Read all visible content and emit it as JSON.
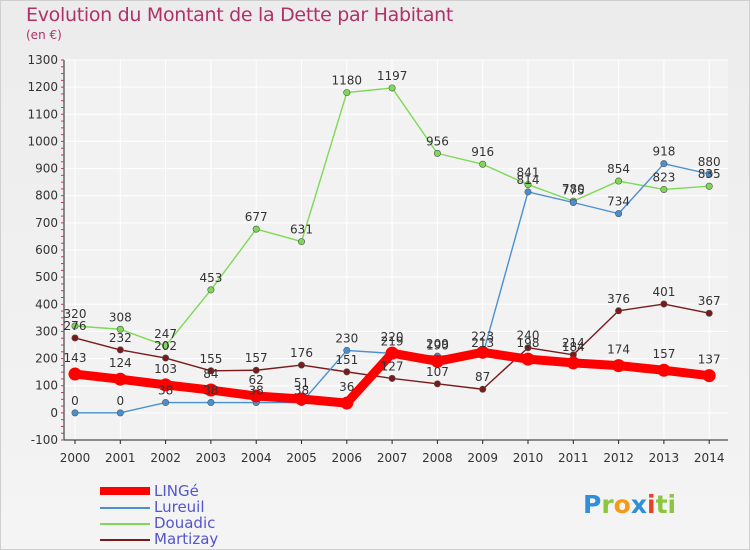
{
  "title": "Evolution du Montant de la Dette par Habitant",
  "subtitle": "(en €)",
  "logo": {
    "text": "Proxiti",
    "letters": [
      "P",
      "r",
      "o",
      "x",
      "i",
      "t",
      "i"
    ]
  },
  "chart_data": {
    "type": "line",
    "x": [
      "2000",
      "2001",
      "2002",
      "2003",
      "2004",
      "2005",
      "2006",
      "2007",
      "2008",
      "2009",
      "2010",
      "2011",
      "2012",
      "2013",
      "2014"
    ],
    "ylim": [
      -100,
      1300
    ],
    "yticks": [
      "-100",
      "0",
      "100",
      "200",
      "300",
      "400",
      "500",
      "600",
      "700",
      "800",
      "900",
      "1000",
      "1100",
      "1200",
      "1300"
    ],
    "grid": true,
    "legend_position": "bottom-left",
    "series": [
      {
        "name": "LINGé",
        "color": "#ff0000",
        "values": [
          143,
          124,
          103,
          84,
          62,
          51,
          36,
          220,
          190,
          223,
          198,
          184,
          174,
          157,
          137
        ],
        "labels": [
          "143",
          "124",
          "103",
          "84",
          "62",
          "51",
          "36",
          "220",
          "190",
          "223",
          "198",
          "184",
          "174",
          "157",
          "137"
        ]
      },
      {
        "name": "Lureuil",
        "color": "#4a90d0",
        "values": [
          0,
          0,
          38,
          38,
          38,
          38,
          230,
          219,
          209,
          213,
          814,
          775,
          734,
          918,
          880
        ],
        "labels": [
          "0",
          "0",
          "38",
          "38",
          "38",
          "38",
          "230",
          "219",
          "209",
          "213",
          "814",
          "775",
          "734",
          "918",
          "880"
        ]
      },
      {
        "name": "Douadic",
        "color": "#7ed957",
        "values": [
          320,
          308,
          247,
          453,
          677,
          631,
          1180,
          1197,
          956,
          916,
          841,
          780,
          854,
          823,
          835
        ],
        "labels": [
          "320",
          "308",
          "247",
          "453",
          "677",
          "631",
          "1180",
          "1197",
          "956",
          "916",
          "841",
          "780",
          "854",
          "823",
          "835"
        ]
      },
      {
        "name": "Martizay",
        "color": "#7a1a1a",
        "values": [
          276,
          232,
          202,
          155,
          157,
          176,
          151,
          127,
          107,
          87,
          240,
          214,
          376,
          401,
          367
        ],
        "labels": [
          "276",
          "232",
          "202",
          "155",
          "157",
          "176",
          "151",
          "127",
          "107",
          "87",
          "240",
          "214",
          "376",
          "401",
          "367"
        ]
      }
    ]
  }
}
